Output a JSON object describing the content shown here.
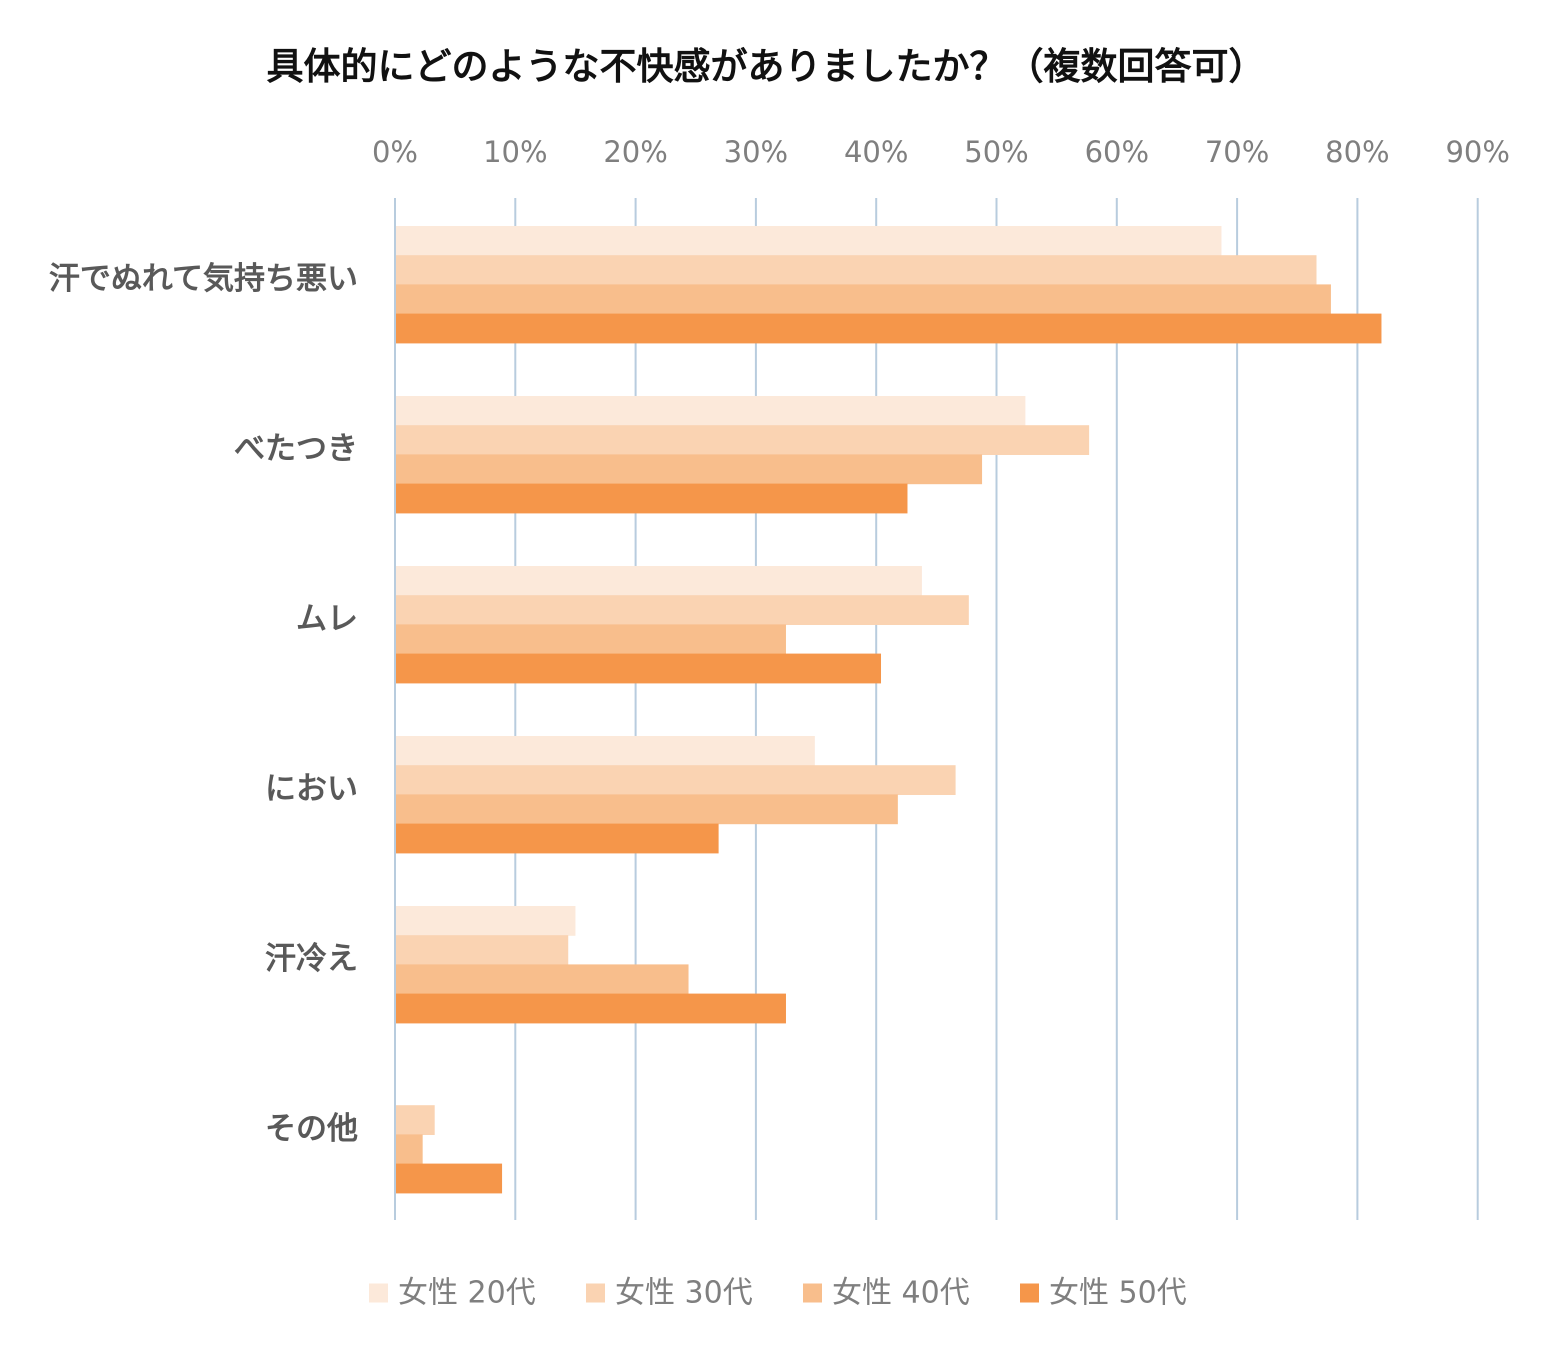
{
  "chart_data": {
    "type": "bar",
    "orientation": "horizontal",
    "title": "具体的にどのような不快感がありましたか？（複数回答可）",
    "categories": [
      "汗でぬれて気持ち悪い",
      "べたつき",
      "ムレ",
      "におい",
      "汗冷え",
      "その他"
    ],
    "series": [
      {
        "name": "女性 20代",
        "color": "#FCE9DA",
        "values": [
          68.7,
          52.4,
          43.8,
          34.9,
          15.0,
          0.0
        ]
      },
      {
        "name": "女性 30代",
        "color": "#FAD3B2",
        "values": [
          76.6,
          57.7,
          47.7,
          46.6,
          14.4,
          3.3
        ]
      },
      {
        "name": "女性 40代",
        "color": "#F8BE8C",
        "values": [
          77.8,
          48.8,
          32.5,
          41.8,
          24.4,
          2.3
        ]
      },
      {
        "name": "女性 50代",
        "color": "#F5964A",
        "values": [
          82.0,
          42.6,
          40.4,
          26.9,
          32.5,
          8.9
        ]
      }
    ],
    "x_ticks": [
      "0%",
      "10%",
      "20%",
      "30%",
      "40%",
      "50%",
      "60%",
      "70%",
      "80%",
      "90%"
    ],
    "xlim": [
      0,
      90
    ],
    "x_unit": "%",
    "grid": true,
    "gridline_color": "#B8CCDE",
    "axis_position": "top",
    "legend_position": "bottom"
  }
}
